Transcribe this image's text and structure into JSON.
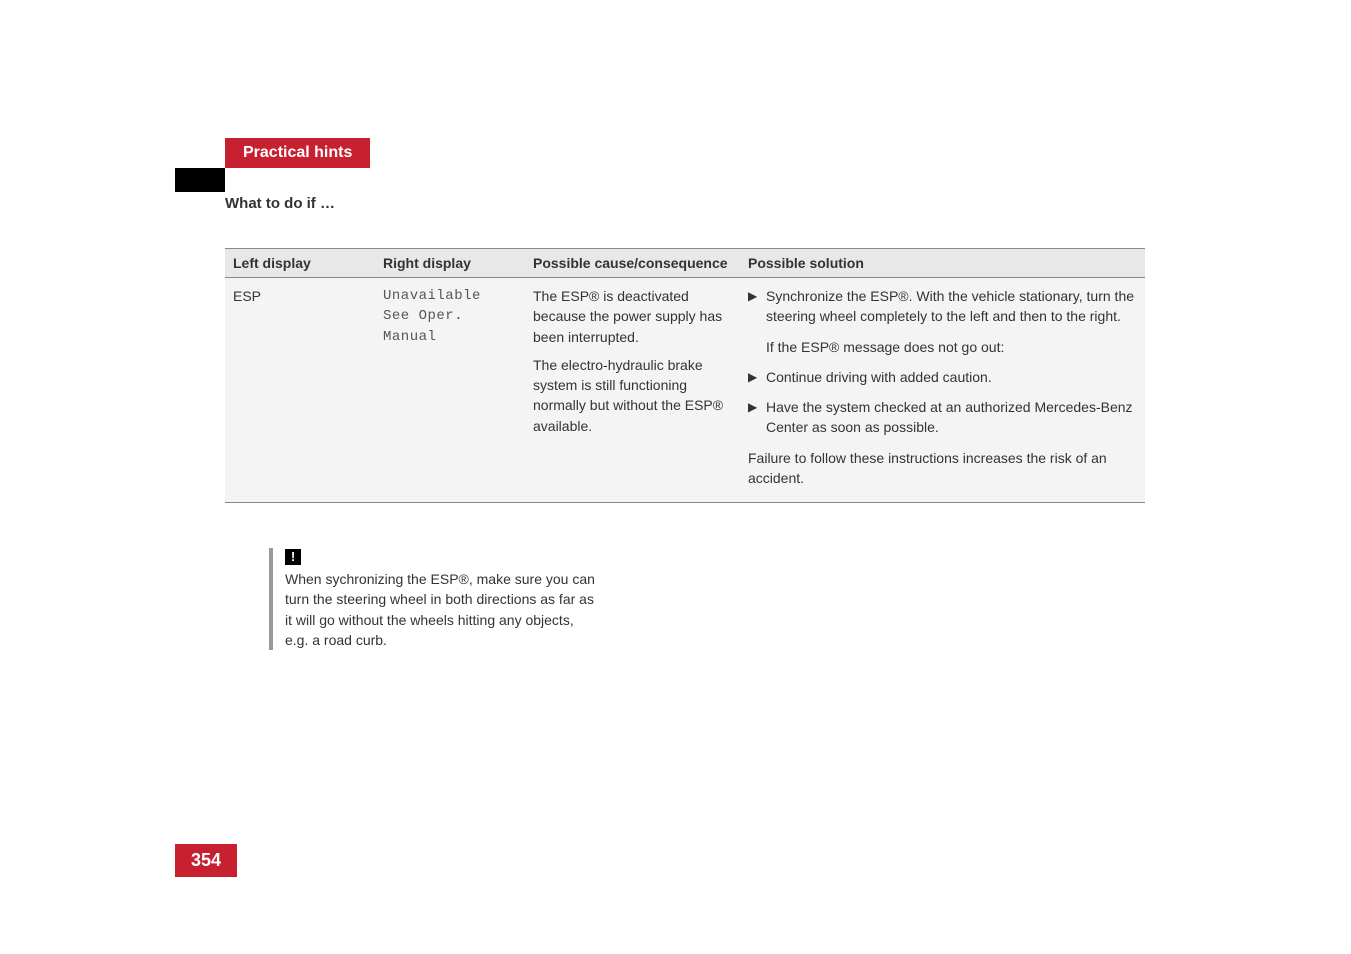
{
  "header": {
    "title": "Practical hints",
    "subtitle": "What to do if …"
  },
  "table": {
    "headers": {
      "left": "Left display",
      "right": "Right display",
      "cause": "Possible cause/consequence",
      "solution": "Possible solution"
    },
    "row": {
      "left_display": "ESP",
      "right_display_line1": "Unavailable",
      "right_display_line2": "See Oper. Manual",
      "cause_para1": "The ESP® is deactivated because the power supply has been interrupted.",
      "cause_para2": "The electro-hydraulic brake system is still functioning normally but without the ESP® available.",
      "solution_bullet1": "Synchronize the ESP®. With the vehicle stationary, turn the steering wheel completely to the left and then to the right.",
      "solution_indent": "If the ESP® message does not go out:",
      "solution_bullet2": "Continue driving with added caution.",
      "solution_bullet3": "Have the system checked at an authorized Mercedes-Benz Center as soon as possible.",
      "solution_footer": "Failure to follow these instructions increases the risk of an accident."
    }
  },
  "note": {
    "icon": "!",
    "text": "When sychronizing the ESP®, make sure you can turn the steering wheel in both directions as far as it will go without the wheels hitting any objects, e.g. a road curb."
  },
  "page_number": "354",
  "colors": {
    "brand_red": "#c72030",
    "black": "#000000",
    "white": "#ffffff",
    "gray_border": "#999999"
  }
}
